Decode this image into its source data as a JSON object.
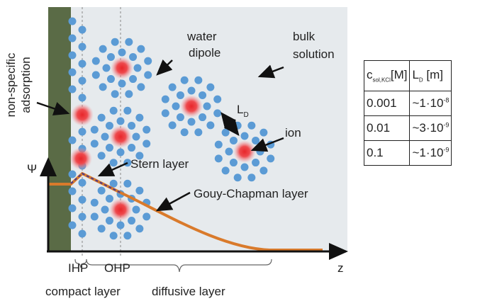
{
  "labels": {
    "water": "water",
    "dipole": "dipole",
    "bulk": "bulk",
    "solution": "solution",
    "non_specific": "non-specific",
    "adsorption": "adsorption",
    "ld": {
      "text": "L",
      "sub": "D"
    },
    "ion": "ion",
    "psi": "Ψ",
    "stern": "Stern layer",
    "gouy": "Gouy-Chapman layer",
    "z": "z",
    "ihp": "IHP",
    "ohp": "OHP",
    "compact": "compact layer",
    "diffusive": "diffusive layer"
  },
  "table": {
    "header": [
      {
        "text": "c",
        "sub": "sol,KCl",
        "suffix": "[M]"
      },
      {
        "text": "L",
        "sub": "D",
        "suffix": " [m]"
      }
    ],
    "rows": [
      [
        "0.001",
        {
          "text": "~1·10",
          "sup": "-8"
        }
      ],
      [
        "0.01",
        {
          "text": "~3·10",
          "sup": "-9"
        }
      ],
      [
        "0.1",
        {
          "text": "~1·10",
          "sup": "-9"
        }
      ]
    ]
  }
}
